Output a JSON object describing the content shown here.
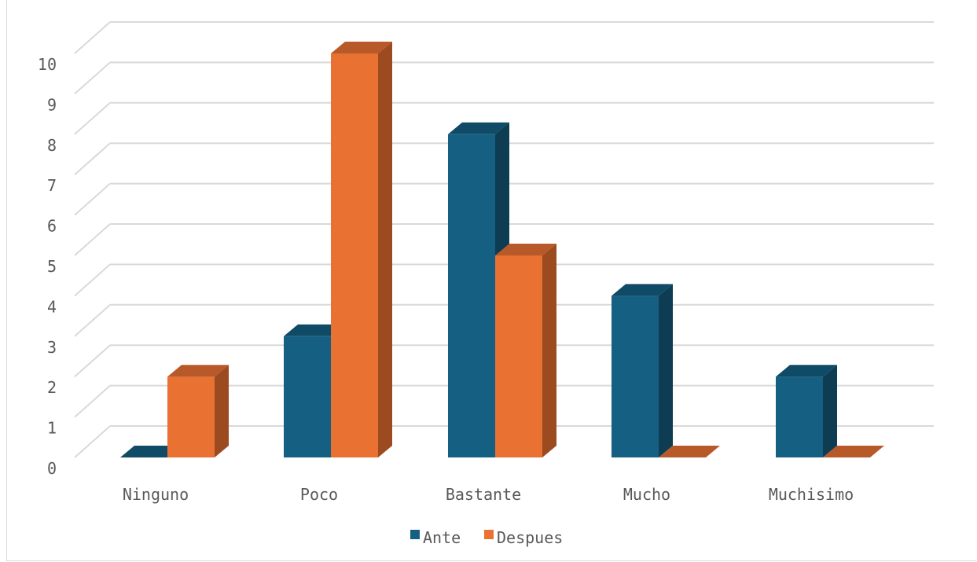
{
  "chart_data": {
    "type": "bar",
    "categories": [
      "Ninguno",
      "Poco",
      "Bastante",
      "Mucho",
      "Muchisimo"
    ],
    "series": [
      {
        "name": "Ante",
        "values": [
          0,
          3,
          8,
          4,
          2
        ]
      },
      {
        "name": "Despues",
        "values": [
          2,
          10,
          5,
          0,
          0
        ]
      }
    ],
    "ylim": [
      0,
      10
    ],
    "yticks": [
      0,
      1,
      2,
      3,
      4,
      5,
      6,
      7,
      8,
      9,
      10
    ],
    "grid": true,
    "legend_position": "bottom",
    "style": "3d-clustered-column",
    "colors": {
      "Ante": {
        "front": "#156082",
        "side": "#0e3d53",
        "top": "#0f4a66"
      },
      "Despues": {
        "front": "#e97132",
        "side": "#9c4b21",
        "top": "#b8592a"
      },
      "grid": "#d9d9d9",
      "text": "#595959"
    }
  }
}
